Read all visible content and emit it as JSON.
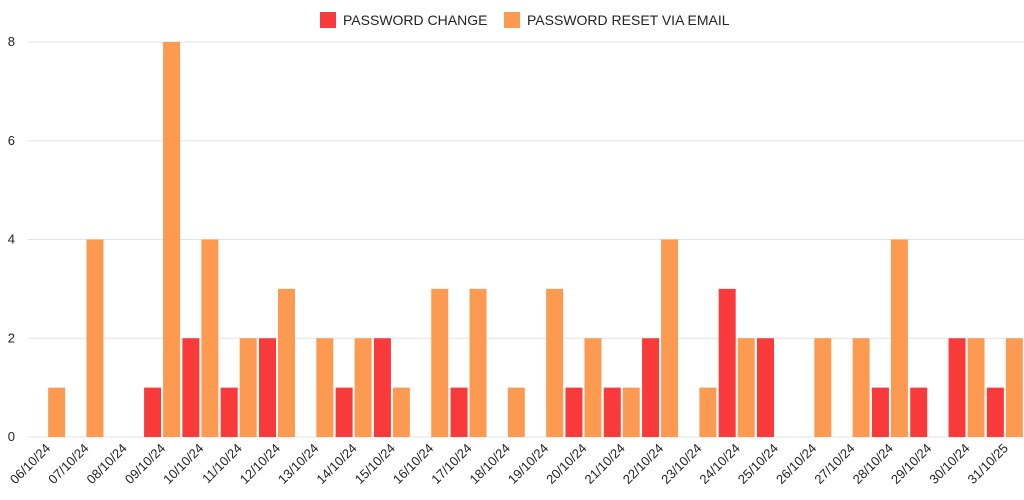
{
  "chart_data": {
    "type": "bar",
    "categories": [
      "06/10/24",
      "07/10/24",
      "08/10/24",
      "09/10/24",
      "10/10/24",
      "11/10/24",
      "12/10/24",
      "13/10/24",
      "14/10/24",
      "15/10/24",
      "16/10/24",
      "17/10/24",
      "18/10/24",
      "19/10/24",
      "20/10/24",
      "21/10/24",
      "22/10/24",
      "23/10/24",
      "24/10/24",
      "25/10/24",
      "26/10/24",
      "27/10/24",
      "28/10/24",
      "29/10/24",
      "30/10/24",
      "31/10/25"
    ],
    "series": [
      {
        "name": "PASSWORD CHANGE",
        "color": "#f93a3a",
        "values": [
          0,
          0,
          0,
          1,
          2,
          1,
          2,
          0,
          1,
          2,
          0,
          1,
          0,
          0,
          1,
          1,
          2,
          0,
          3,
          2,
          0,
          0,
          1,
          1,
          2,
          1
        ]
      },
      {
        "name": "PASSWORD RESET VIA EMAIL",
        "color": "#fd9a52",
        "values": [
          1,
          4,
          0,
          8,
          4,
          2,
          3,
          2,
          2,
          1,
          3,
          3,
          1,
          3,
          2,
          1,
          4,
          1,
          2,
          0,
          2,
          2,
          4,
          0,
          2,
          2
        ]
      }
    ],
    "ylim": [
      0,
      8
    ],
    "yticks": [
      0,
      2,
      4,
      6,
      8
    ],
    "grid": true,
    "legend_position": "top-center"
  }
}
